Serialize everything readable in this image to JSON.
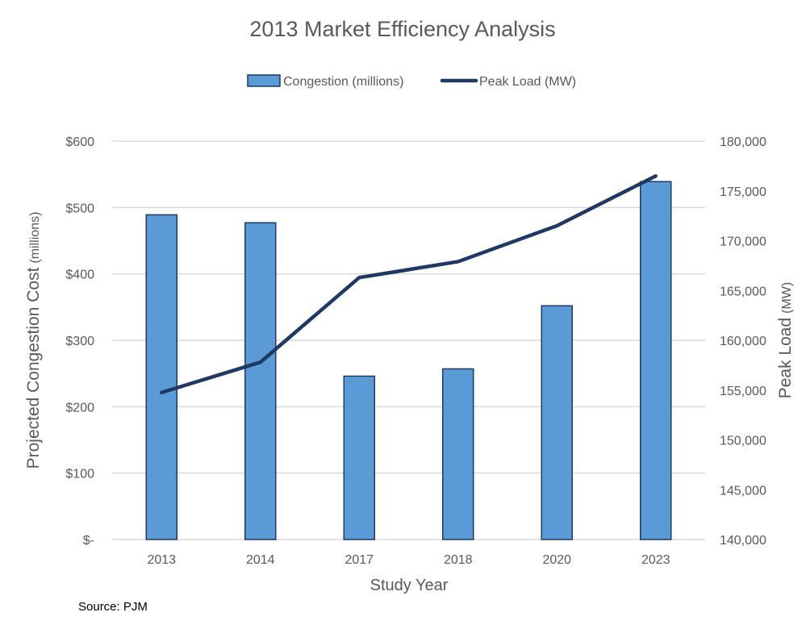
{
  "chart_data": {
    "type": "bar+line",
    "title": "2013 Market Efficiency Analysis",
    "xlabel": "Study Year",
    "ylabel": "Projected Congestion Cost (millions)",
    "ylabel_main": "Projected Congestion Cost",
    "ylabel_unit": "(millions)",
    "y2label": "Peak Load (MW)",
    "y2label_main": "Peak Load",
    "y2label_unit": "(MW)",
    "categories": [
      "2013",
      "2014",
      "2017",
      "2018",
      "2020",
      "2023"
    ],
    "series": [
      {
        "name": "Congestion (millions)",
        "type": "bar",
        "axis": "left",
        "color": "#5B9BD5",
        "edge": "#1F3864",
        "values": [
          489,
          477,
          246,
          257,
          352,
          539
        ]
      },
      {
        "name": "Peak Load (MW)",
        "type": "line",
        "axis": "right",
        "color": "#1F3864",
        "values": [
          154760,
          157800,
          166300,
          167900,
          171500,
          176500
        ]
      }
    ],
    "ylim": [
      0,
      600
    ],
    "y_ticks": [
      "$-",
      "$100",
      "$200",
      "$300",
      "$400",
      "$500",
      "$600"
    ],
    "y2lim": [
      140000,
      180000
    ],
    "y2_ticks": [
      "140,000",
      "145,000",
      "150,000",
      "155,000",
      "160,000",
      "165,000",
      "170,000",
      "175,000",
      "180,000"
    ],
    "grid": true,
    "legend_position": "top-center",
    "source": "Source: PJM"
  }
}
